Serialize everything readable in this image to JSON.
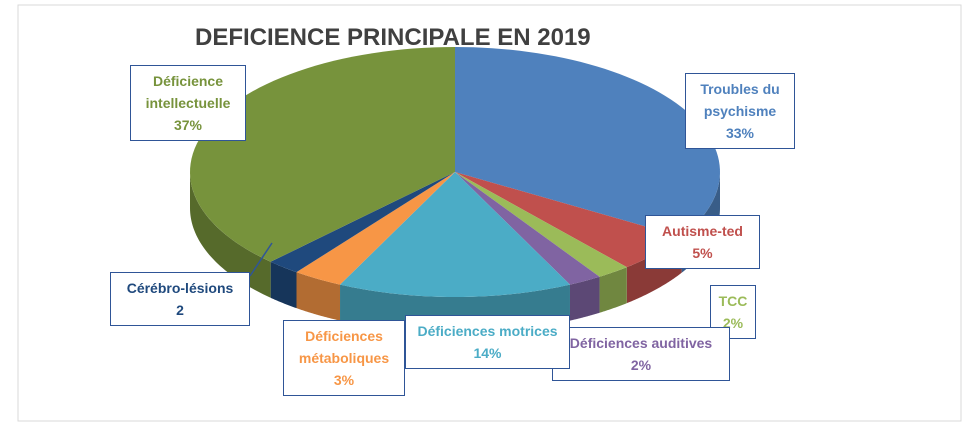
{
  "chart_data": {
    "type": "pie3d",
    "title": "DEFICIENCE PRINCIPALE EN 2019",
    "categories": [
      "Troubles du psychisme",
      "Autisme-ted",
      "TCC",
      "Déficiences auditives",
      "Déficiences motrices",
      "Déficiences métaboliques",
      "Cérébro-lésions",
      "Déficience intellectuelle"
    ],
    "values": [
      33,
      5,
      2,
      2,
      14,
      3,
      2,
      37
    ],
    "value_labels": [
      "33%",
      "5%",
      "2%",
      "2%",
      "14%",
      "3%",
      "2",
      "37%"
    ],
    "colors": [
      "#4f81bd",
      "#c0504d",
      "#9bbb59",
      "#8064a2",
      "#4bacc6",
      "#f79646",
      "#1f497d",
      "#77933c"
    ]
  }
}
